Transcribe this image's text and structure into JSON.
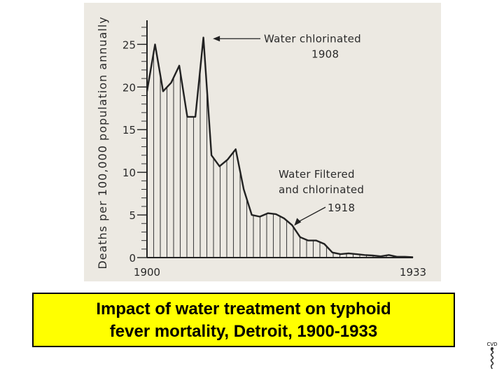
{
  "chart_data": {
    "type": "area",
    "ylabel": "Deaths per 100,000 population annually",
    "x_tick_labels": [
      "1900",
      "1933"
    ],
    "y_ticks": [
      0,
      5,
      10,
      15,
      20,
      25
    ],
    "ylim": [
      0,
      27
    ],
    "xlim": [
      1900,
      1933
    ],
    "x": [
      1900,
      1901,
      1902,
      1903,
      1904,
      1905,
      1906,
      1907,
      1908,
      1909,
      1910,
      1911,
      1912,
      1913,
      1914,
      1915,
      1916,
      1917,
      1918,
      1919,
      1920,
      1921,
      1922,
      1923,
      1924,
      1925,
      1926,
      1927,
      1928,
      1929,
      1930,
      1931,
      1932,
      1933
    ],
    "values": [
      19.5,
      25,
      19.5,
      20.5,
      22.5,
      16.5,
      16.5,
      25.8,
      12,
      10.7,
      11.5,
      12.7,
      8,
      5,
      4.8,
      5.2,
      5.1,
      4.6,
      3.8,
      2.4,
      2.0,
      2.0,
      1.6,
      0.6,
      0.4,
      0.5,
      0.4,
      0.3,
      0.25,
      0.15,
      0.3,
      0.1,
      0.1,
      0.05
    ],
    "annotations": [
      {
        "lines": [
          "Water chlorinated",
          "1908"
        ],
        "x": 1908,
        "y": 25.5
      },
      {
        "lines": [
          "Water Filtered",
          "and chlorinated",
          "1918"
        ],
        "x": 1918,
        "y": 3.5
      }
    ]
  },
  "caption": {
    "line1": "Impact of water treatment on typhoid",
    "line2": "fever mortality, Detroit, 1900-1933"
  },
  "logo": {
    "label": "CVD"
  }
}
